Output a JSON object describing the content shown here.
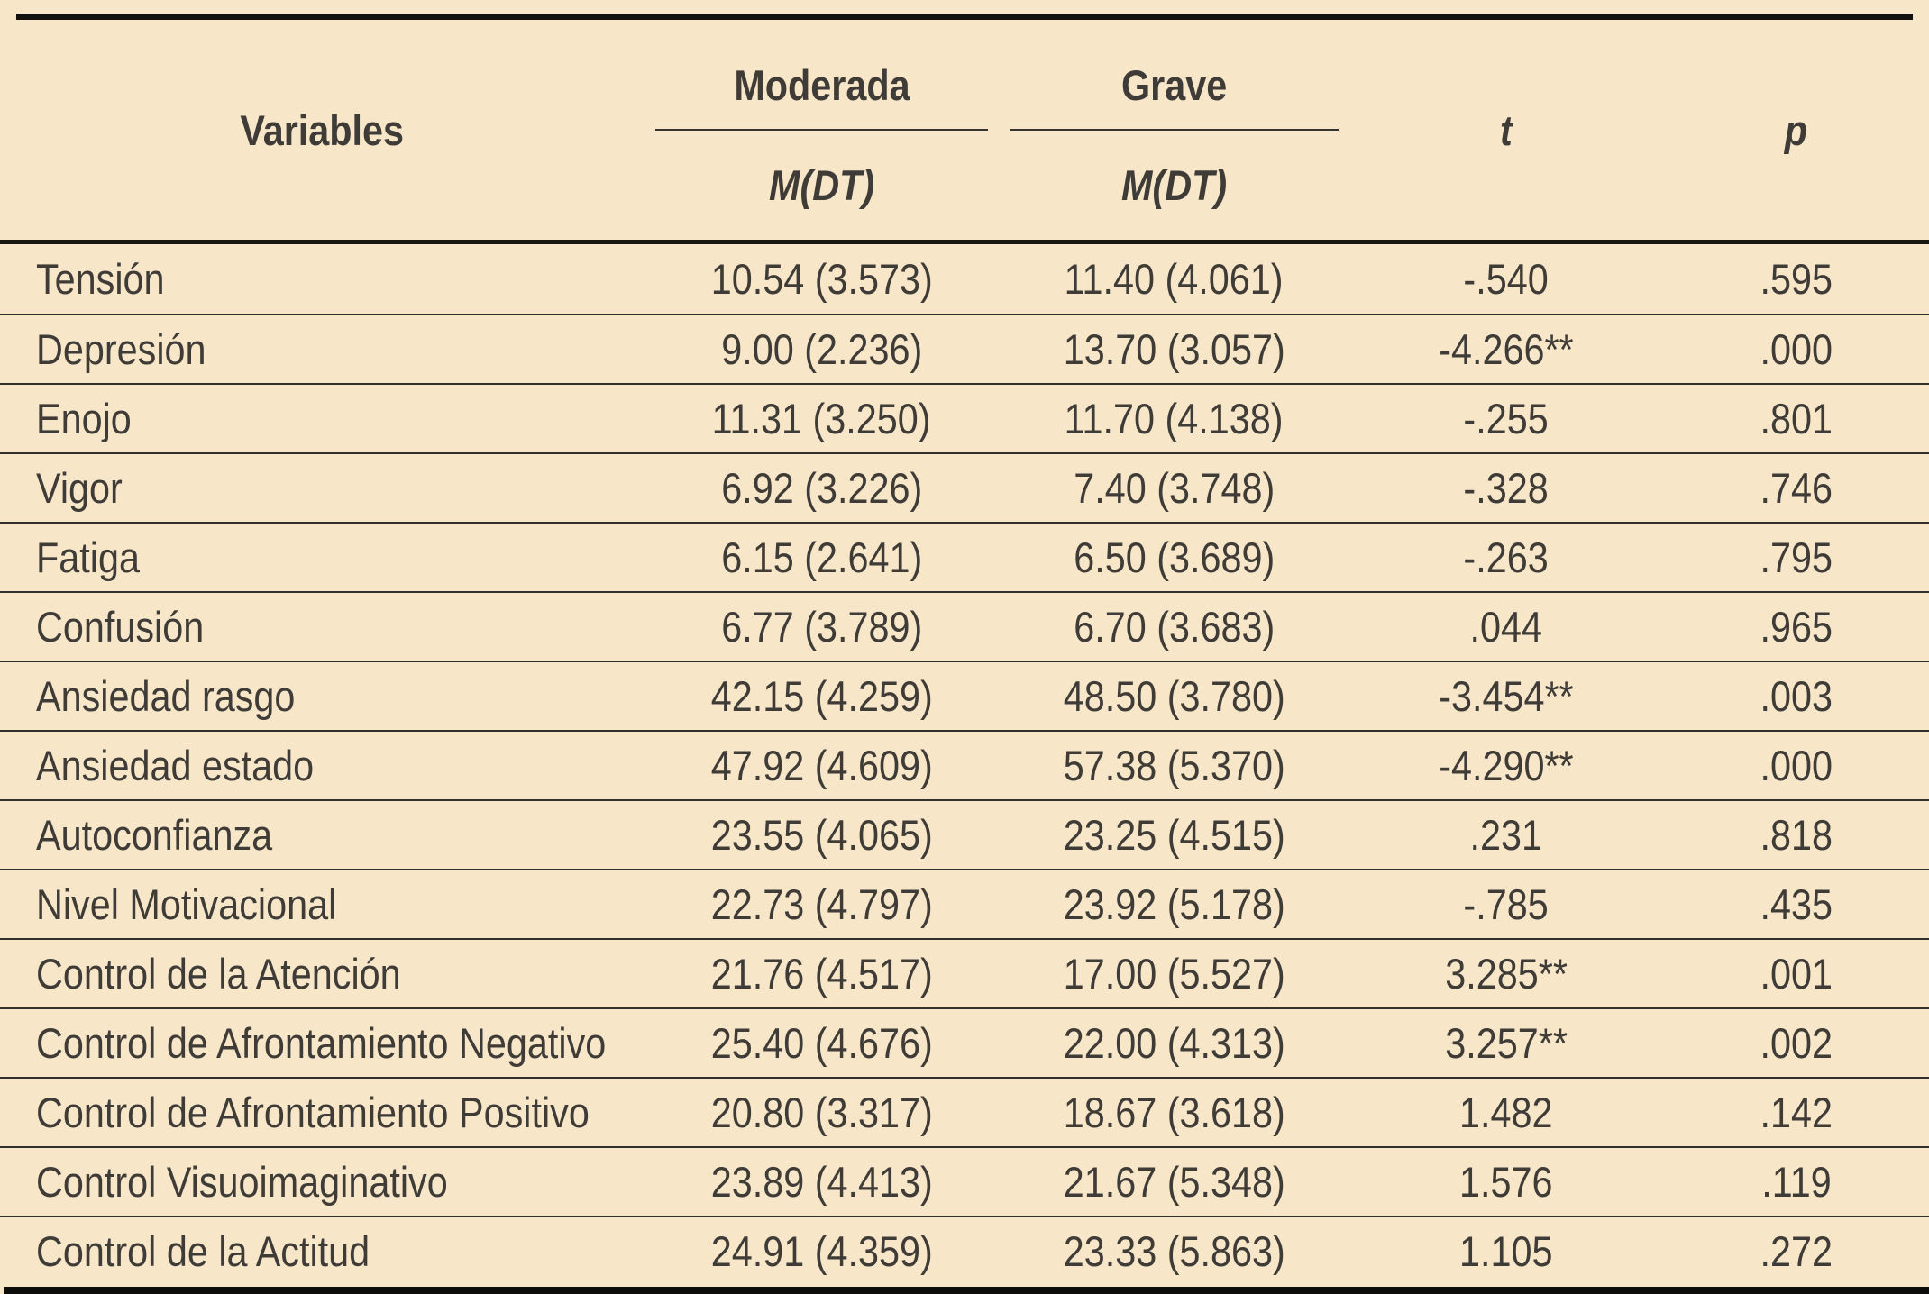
{
  "colors": {
    "background": "#f7e6c8",
    "text": "#3f3c38",
    "heavy_rule": "#12110f",
    "thin_rule": "#31302b"
  },
  "table": {
    "header": {
      "variables": "Variables",
      "moderada": "Moderada",
      "grave": "Grave",
      "mdt": "M(DT)",
      "t": "t",
      "p": "p"
    },
    "rows": [
      {
        "variable": "Tensión",
        "moderada": "10.54 (3.573)",
        "grave": "11.40 (4.061)",
        "t": "-.540",
        "p": ".595"
      },
      {
        "variable": "Depresión",
        "moderada": "9.00 (2.236)",
        "grave": "13.70 (3.057)",
        "t": "-4.266**",
        "p": ".000"
      },
      {
        "variable": "Enojo",
        "moderada": "11.31 (3.250)",
        "grave": "11.70 (4.138)",
        "t": "-.255",
        "p": ".801"
      },
      {
        "variable": "Vigor",
        "moderada": "6.92 (3.226)",
        "grave": "7.40 (3.748)",
        "t": "-.328",
        "p": ".746"
      },
      {
        "variable": "Fatiga",
        "moderada": "6.15 (2.641)",
        "grave": "6.50 (3.689)",
        "t": "-.263",
        "p": ".795"
      },
      {
        "variable": "Confusión",
        "moderada": "6.77 (3.789)",
        "grave": "6.70 (3.683)",
        "t": ".044",
        "p": ".965"
      },
      {
        "variable": "Ansiedad rasgo",
        "moderada": "42.15 (4.259)",
        "grave": "48.50 (3.780)",
        "t": "-3.454**",
        "p": ".003"
      },
      {
        "variable": "Ansiedad estado",
        "moderada": "47.92 (4.609)",
        "grave": "57.38 (5.370)",
        "t": "-4.290**",
        "p": ".000"
      },
      {
        "variable": "Autoconfianza",
        "moderada": "23.55 (4.065)",
        "grave": "23.25 (4.515)",
        "t": ".231",
        "p": ".818"
      },
      {
        "variable": "Nivel Motivacional",
        "moderada": "22.73 (4.797)",
        "grave": "23.92 (5.178)",
        "t": "-.785",
        "p": ".435"
      },
      {
        "variable": "Control de la Atención",
        "moderada": "21.76 (4.517)",
        "grave": "17.00 (5.527)",
        "t": "3.285**",
        "p": ".001"
      },
      {
        "variable": "Control de Afrontamiento Negativo",
        "moderada": "25.40 (4.676)",
        "grave": "22.00 (4.313)",
        "t": "3.257**",
        "p": ".002"
      },
      {
        "variable": "Control de Afrontamiento Positivo",
        "moderada": "20.80 (3.317)",
        "grave": "18.67 (3.618)",
        "t": "1.482",
        "p": ".142"
      },
      {
        "variable": "Control Visuoimaginativo",
        "moderada": "23.89 (4.413)",
        "grave": "21.67 (5.348)",
        "t": "1.576",
        "p": ".119"
      },
      {
        "variable": "Control de la Actitud",
        "moderada": "24.91 (4.359)",
        "grave": "23.33 (5.863)",
        "t": "1.105",
        "p": ".272"
      }
    ]
  }
}
